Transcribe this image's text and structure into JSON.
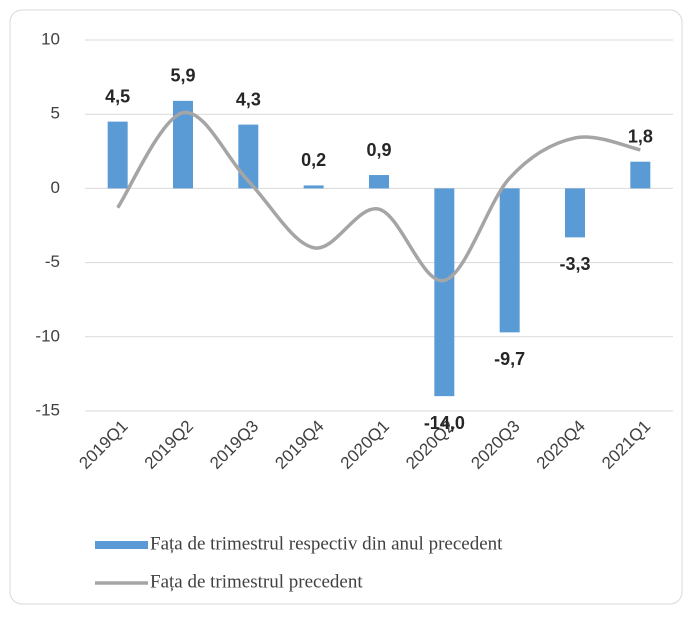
{
  "chart_data": {
    "type": "bar_line",
    "categories": [
      "2019Q1",
      "2019Q2",
      "2019Q3",
      "2019Q4",
      "2020Q1",
      "2020Q2",
      "2020Q3",
      "2020Q4",
      "2021Q1"
    ],
    "series": [
      {
        "name": "Fața de trimestrul respectiv din anul precedent",
        "type": "bar",
        "color": "#5b9bd5",
        "values": [
          4.5,
          5.9,
          4.3,
          0.2,
          0.9,
          -14.0,
          -9.7,
          -3.3,
          1.8
        ],
        "value_labels": [
          "4,5",
          "5,9",
          "4,3",
          "0,2",
          "0,9",
          "-14,0",
          "-9,7",
          "-3,3",
          "1,8"
        ]
      },
      {
        "name": "Fața de trimestrul precedent",
        "type": "line",
        "color": "#a5a5a5",
        "values": [
          -1.3,
          5.1,
          0.5,
          -4.0,
          -1.4,
          -6.2,
          0.7,
          3.4,
          2.6
        ]
      }
    ],
    "ylim": [
      -15,
      10
    ],
    "yticks": [
      -15,
      -10,
      -5,
      0,
      5,
      10
    ],
    "grid": true
  }
}
